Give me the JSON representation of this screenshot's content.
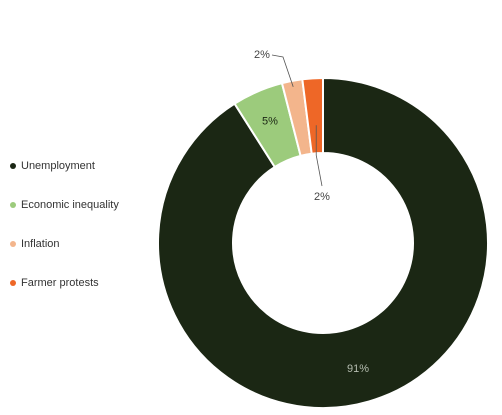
{
  "chart_data": {
    "type": "pie",
    "donut": true,
    "legend": "left",
    "categories": [
      "Unemployment",
      "Economic inequality",
      "Inflation",
      "Farmer protests"
    ],
    "values": [
      91,
      5,
      2,
      2
    ],
    "value_labels": [
      "91%",
      "5%",
      "2%",
      "2%"
    ],
    "colors": [
      "#1b2714",
      "#9ccb7c",
      "#f3b58c",
      "#ee6727"
    ]
  }
}
